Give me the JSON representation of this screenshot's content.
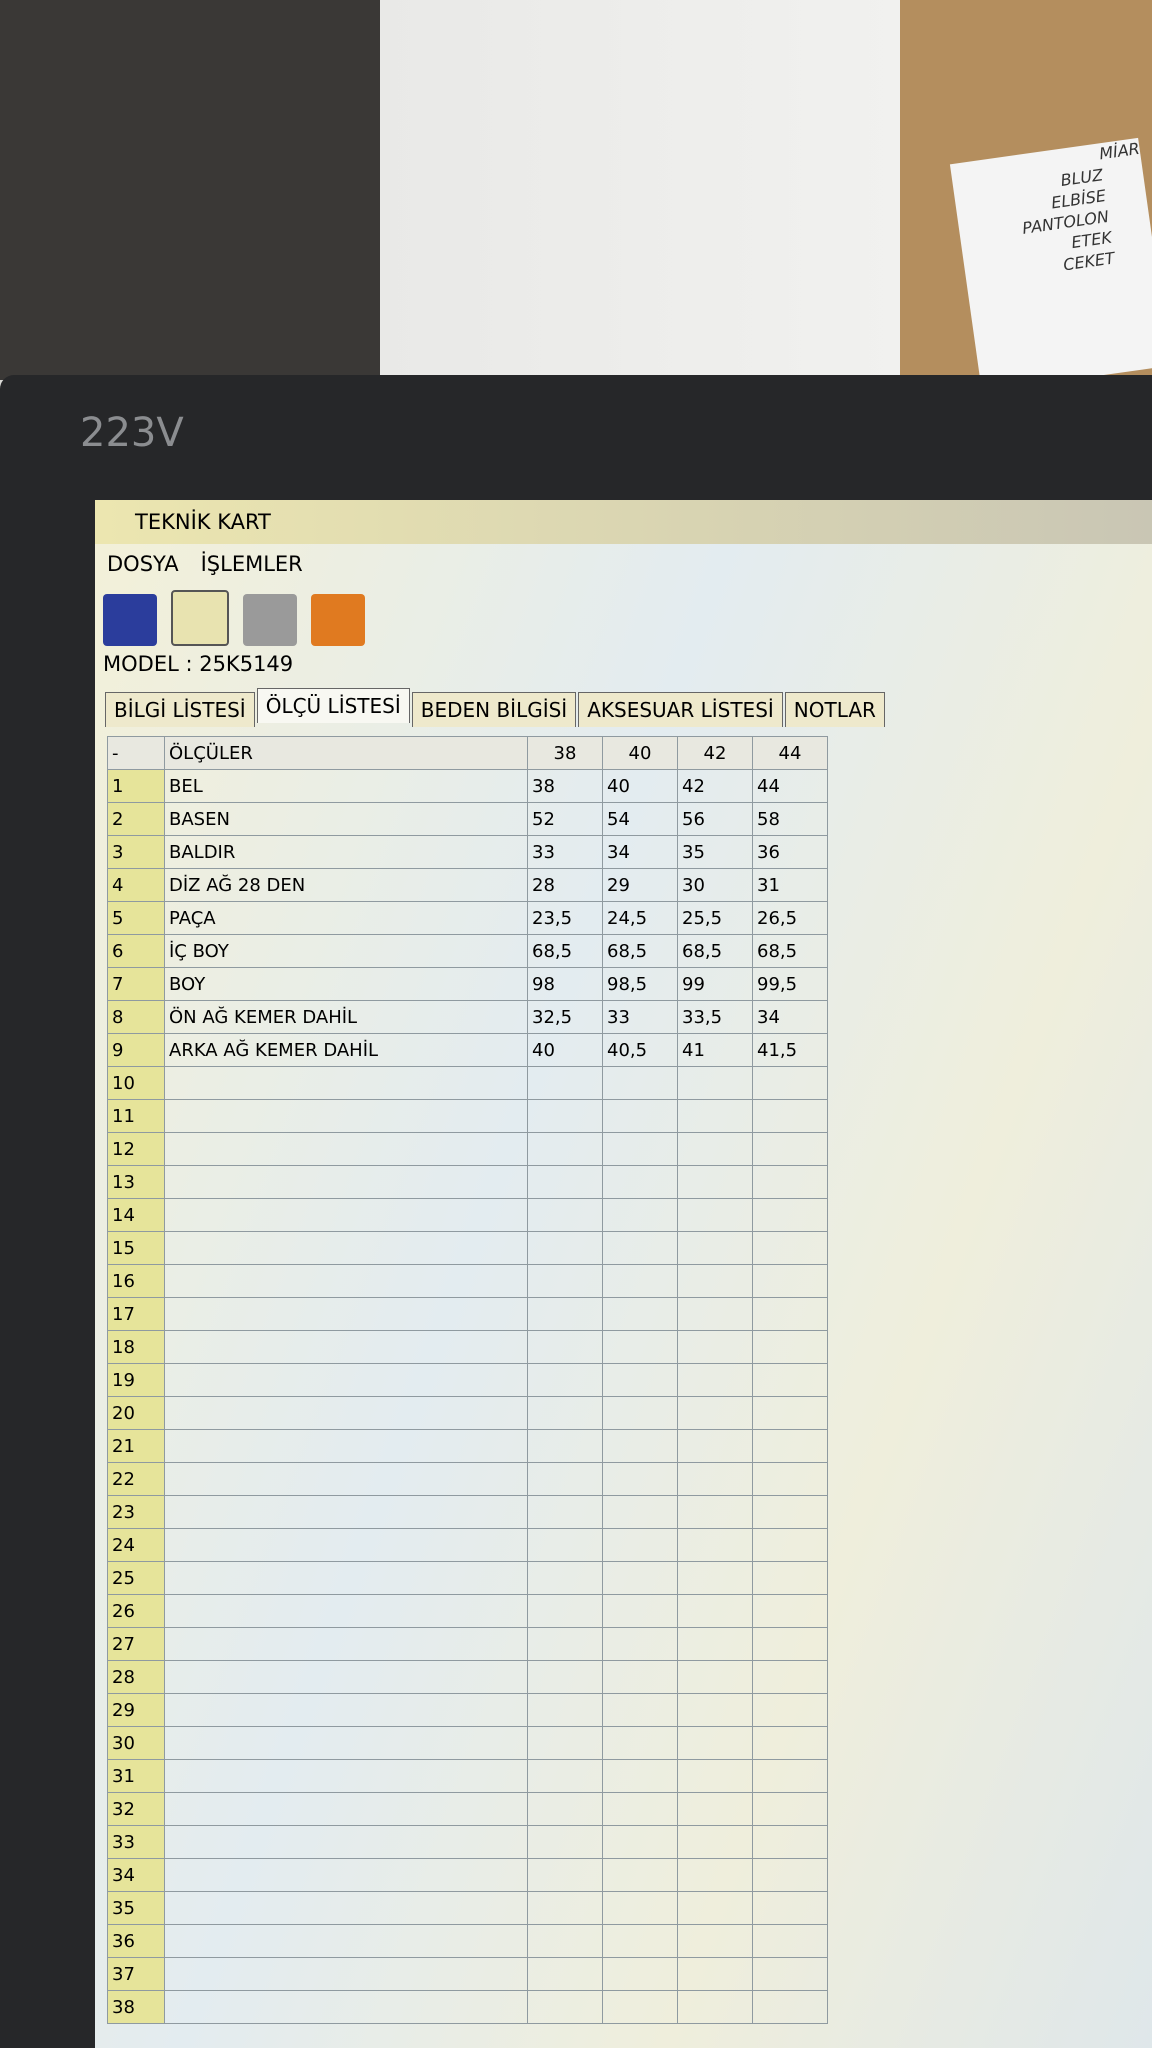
{
  "background": {
    "note": {
      "title": "MİAR",
      "items": [
        "BLUZ",
        "ELBİSE",
        "PANTOLON",
        "ETEK",
        "CEKET"
      ]
    },
    "monitor_label": "223V"
  },
  "window": {
    "title": "TEKNİK KART",
    "menu": [
      "DOSYA",
      "İŞLEMLER"
    ],
    "model": "MODEL : 25K5149",
    "tabs": [
      "BİLGİ LİSTESİ",
      "ÖLÇÜ LİSTESİ",
      "BEDEN BİLGİSİ",
      "AKSESUAR LİSTESİ",
      "NOTLAR"
    ],
    "table": {
      "header": [
        "-",
        "ÖLÇÜLER",
        "38",
        "40",
        "42",
        "44"
      ],
      "rows": [
        [
          "1",
          "BEL",
          "38",
          "40",
          "42",
          "44"
        ],
        [
          "2",
          "BASEN",
          "52",
          "54",
          "56",
          "58"
        ],
        [
          "3",
          "BALDIR",
          "33",
          "34",
          "35",
          "36"
        ],
        [
          "4",
          "DİZ AĞ 28 DEN",
          "28",
          "29",
          "30",
          "31"
        ],
        [
          "5",
          "PAÇA",
          "23,5",
          "24,5",
          "25,5",
          "26,5"
        ],
        [
          "6",
          "İÇ BOY",
          "68,5",
          "68,5",
          "68,5",
          "68,5"
        ],
        [
          "7",
          "BOY",
          "98",
          "98,5",
          "99",
          "99,5"
        ],
        [
          "8",
          "ÖN AĞ KEMER DAHİL",
          "32,5",
          "33",
          "33,5",
          "34"
        ],
        [
          "9",
          "ARKA AĞ KEMER DAHİL",
          "40",
          "40,5",
          "41",
          "41,5"
        ],
        [
          "10"
        ],
        [
          "11"
        ],
        [
          "12"
        ],
        [
          "13"
        ],
        [
          "14"
        ],
        [
          "15"
        ],
        [
          "16"
        ],
        [
          "17"
        ],
        [
          "18"
        ],
        [
          "19"
        ],
        [
          "20"
        ],
        [
          "21"
        ],
        [
          "22"
        ],
        [
          "23"
        ],
        [
          "24"
        ],
        [
          "25"
        ],
        [
          "26"
        ],
        [
          "27"
        ],
        [
          "28"
        ],
        [
          "29"
        ],
        [
          "30"
        ],
        [
          "31"
        ],
        [
          "32"
        ],
        [
          "33"
        ],
        [
          "34"
        ],
        [
          "35"
        ],
        [
          "36"
        ],
        [
          "37"
        ],
        [
          "38"
        ]
      ]
    }
  }
}
